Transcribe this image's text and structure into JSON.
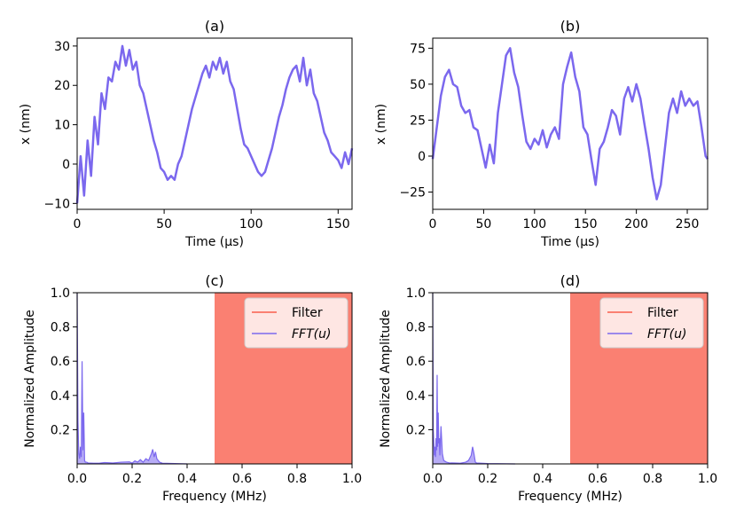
{
  "colors": {
    "signal": "#7b68ee",
    "filter": "#fa8072",
    "axis": "#000000"
  },
  "chart_data": [
    {
      "id": "a",
      "type": "line",
      "title": "(a)",
      "xlabel": "Time (μs)",
      "ylabel": "x (nm)",
      "xlim": [
        0,
        158
      ],
      "ylim": [
        -11.5,
        32
      ],
      "xticks": [
        0,
        50,
        100,
        150
      ],
      "yticks": [
        -10,
        0,
        10,
        20,
        30
      ],
      "xtick_labels": [
        "0",
        "50",
        "100",
        "150"
      ],
      "ytick_labels": [
        "−10",
        "0",
        "10",
        "20",
        "30"
      ],
      "series": [
        {
          "name": "x",
          "x": [
            0,
            2,
            4,
            6,
            8,
            10,
            12,
            14,
            16,
            18,
            20,
            22,
            24,
            26,
            28,
            30,
            32,
            34,
            36,
            38,
            40,
            42,
            44,
            46,
            48,
            50,
            52,
            54,
            56,
            58,
            60,
            62,
            64,
            66,
            68,
            70,
            72,
            74,
            76,
            78,
            80,
            82,
            84,
            86,
            88,
            90,
            92,
            94,
            96,
            98,
            100,
            102,
            104,
            106,
            108,
            110,
            112,
            114,
            116,
            118,
            120,
            122,
            124,
            126,
            128,
            130,
            132,
            134,
            136,
            138,
            140,
            142,
            144,
            146,
            148,
            150,
            152,
            154,
            156,
            158
          ],
          "y": [
            -10,
            2,
            -8,
            6,
            -3,
            12,
            5,
            18,
            14,
            22,
            21,
            26,
            24,
            30,
            25,
            29,
            24,
            26,
            20,
            18,
            14,
            10,
            6,
            3,
            -1,
            -2,
            -4,
            -3,
            -4,
            0,
            2,
            6,
            10,
            14,
            17,
            20,
            23,
            25,
            22,
            26,
            24,
            27,
            23,
            26,
            21,
            19,
            14,
            9,
            5,
            4,
            2,
            0,
            -2,
            -3,
            -2,
            1,
            4,
            8,
            12,
            15,
            19,
            22,
            24,
            25,
            21,
            27,
            20,
            24,
            18,
            16,
            12,
            8,
            6,
            3,
            2,
            1,
            -1,
            3,
            0,
            4
          ]
        }
      ]
    },
    {
      "id": "b",
      "type": "line",
      "title": "(b)",
      "xlabel": "Time (μs)",
      "ylabel": "x (nm)",
      "xlim": [
        0,
        270
      ],
      "ylim": [
        -37,
        82
      ],
      "xticks": [
        0,
        50,
        100,
        150,
        200,
        250
      ],
      "yticks": [
        -25,
        0,
        25,
        50,
        75
      ],
      "xtick_labels": [
        "0",
        "50",
        "100",
        "150",
        "200",
        "250"
      ],
      "ytick_labels": [
        "−25",
        "0",
        "25",
        "50",
        "75"
      ],
      "series": [
        {
          "name": "x",
          "x": [
            0,
            4,
            8,
            12,
            16,
            20,
            24,
            28,
            32,
            36,
            40,
            44,
            48,
            52,
            56,
            60,
            64,
            68,
            72,
            76,
            80,
            84,
            88,
            92,
            96,
            100,
            104,
            108,
            112,
            116,
            120,
            124,
            128,
            132,
            136,
            140,
            144,
            148,
            152,
            156,
            160,
            164,
            168,
            172,
            176,
            180,
            184,
            188,
            192,
            196,
            200,
            204,
            208,
            212,
            216,
            220,
            224,
            228,
            232,
            236,
            240,
            244,
            248,
            252,
            256,
            260,
            264,
            268,
            270
          ],
          "y": [
            -2,
            20,
            42,
            55,
            60,
            50,
            48,
            35,
            30,
            32,
            20,
            18,
            5,
            -8,
            8,
            -5,
            30,
            50,
            70,
            75,
            58,
            48,
            28,
            10,
            5,
            12,
            8,
            18,
            6,
            15,
            20,
            12,
            50,
            62,
            72,
            55,
            45,
            20,
            15,
            -3,
            -20,
            5,
            10,
            20,
            32,
            28,
            15,
            40,
            48,
            38,
            50,
            40,
            22,
            5,
            -15,
            -30,
            -20,
            5,
            30,
            40,
            30,
            45,
            35,
            40,
            35,
            38,
            20,
            0,
            -2
          ]
        }
      ]
    },
    {
      "id": "c",
      "type": "area",
      "title": "(c)",
      "xlabel": "Frequency (MHz)",
      "ylabel": "Normalized Amplitude",
      "xlim": [
        0,
        1.0
      ],
      "ylim": [
        0,
        1.0
      ],
      "xticks": [
        0.0,
        0.2,
        0.4,
        0.6,
        0.8,
        1.0
      ],
      "yticks": [
        0.2,
        0.4,
        0.6,
        0.8,
        1.0
      ],
      "xtick_labels": [
        "0.0",
        "0.2",
        "0.4",
        "0.6",
        "0.8",
        "1.0"
      ],
      "ytick_labels": [
        "0.2",
        "0.4",
        "0.6",
        "0.8",
        "1.0"
      ],
      "filter_band": [
        0.5,
        1.0
      ],
      "legend": [
        "Filter",
        "FFT(u)"
      ],
      "series": [
        {
          "name": "FFT(u)",
          "x": [
            0.0,
            0.003,
            0.006,
            0.009,
            0.012,
            0.015,
            0.018,
            0.021,
            0.024,
            0.027,
            0.03,
            0.035,
            0.04,
            0.06,
            0.08,
            0.1,
            0.13,
            0.16,
            0.19,
            0.2,
            0.21,
            0.22,
            0.23,
            0.24,
            0.25,
            0.26,
            0.27,
            0.275,
            0.28,
            0.285,
            0.29,
            0.3,
            0.31,
            0.4
          ],
          "y": [
            1.0,
            0.25,
            0.06,
            0.03,
            0.1,
            0.04,
            0.6,
            0.08,
            0.3,
            0.02,
            0.01,
            0.01,
            0.005,
            0.004,
            0.004,
            0.008,
            0.005,
            0.01,
            0.012,
            0.005,
            0.018,
            0.01,
            0.025,
            0.01,
            0.03,
            0.02,
            0.06,
            0.085,
            0.04,
            0.07,
            0.03,
            0.01,
            0.004,
            0.0
          ]
        }
      ]
    },
    {
      "id": "d",
      "type": "area",
      "title": "(d)",
      "xlabel": "Frequency (MHz)",
      "ylabel": "Normalized Amplitude",
      "xlim": [
        0,
        1.0
      ],
      "ylim": [
        0,
        1.0
      ],
      "xticks": [
        0.0,
        0.2,
        0.4,
        0.6,
        0.8,
        1.0
      ],
      "yticks": [
        0.2,
        0.4,
        0.6,
        0.8,
        1.0
      ],
      "xtick_labels": [
        "0.0",
        "0.2",
        "0.4",
        "0.6",
        "0.8",
        "1.0"
      ],
      "ytick_labels": [
        "0.2",
        "0.4",
        "0.6",
        "0.8",
        "1.0"
      ],
      "filter_band": [
        0.5,
        1.0
      ],
      "legend": [
        "Filter",
        "FFT(u)"
      ],
      "series": [
        {
          "name": "FFT(u)",
          "x": [
            0.0,
            0.002,
            0.004,
            0.006,
            0.008,
            0.01,
            0.012,
            0.014,
            0.016,
            0.018,
            0.02,
            0.022,
            0.024,
            0.026,
            0.03,
            0.035,
            0.04,
            0.05,
            0.06,
            0.08,
            0.1,
            0.12,
            0.13,
            0.14,
            0.145,
            0.15,
            0.155,
            0.16,
            0.2,
            0.3
          ],
          "y": [
            1.0,
            0.2,
            0.12,
            0.05,
            0.1,
            0.04,
            0.15,
            0.08,
            0.52,
            0.1,
            0.3,
            0.12,
            0.15,
            0.05,
            0.22,
            0.06,
            0.02,
            0.01,
            0.006,
            0.005,
            0.004,
            0.01,
            0.02,
            0.05,
            0.1,
            0.06,
            0.01,
            0.005,
            0.002,
            0.0
          ]
        }
      ]
    }
  ]
}
